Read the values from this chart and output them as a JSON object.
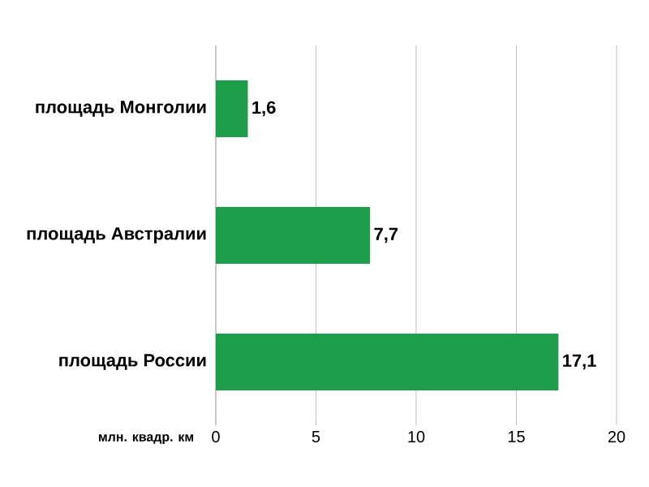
{
  "chart_data": {
    "type": "bar",
    "orientation": "horizontal",
    "xlabel": "млн. квадр. км",
    "categories": [
      "площадь Монголии",
      "площадь Австралии",
      "площадь России"
    ],
    "values": [
      1.6,
      7.7,
      17.1
    ],
    "value_labels": [
      "1,6",
      "7,7",
      "17,1"
    ],
    "color": "#1e9e4a",
    "xlim": [
      0,
      20
    ],
    "xticks": [
      0,
      5,
      10,
      15,
      20
    ],
    "grid": "x"
  }
}
